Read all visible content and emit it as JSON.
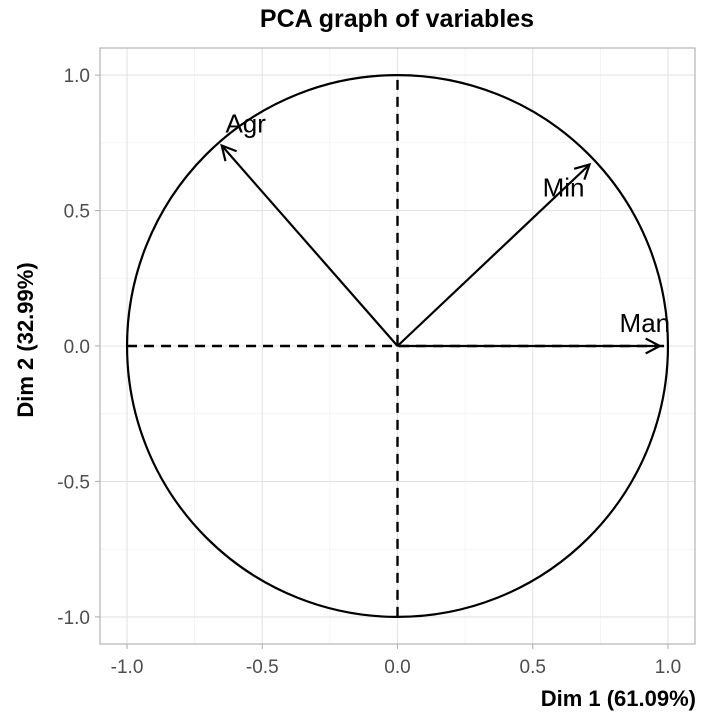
{
  "chart_data": {
    "type": "scatter",
    "title": "PCA graph of variables",
    "xlabel": "Dim 1 (61.09%)",
    "ylabel": "Dim 2 (32.99%)",
    "xlim": [
      -1.1,
      1.1
    ],
    "ylim": [
      -1.1,
      1.1
    ],
    "xticks": [
      -1.0,
      -0.5,
      0.0,
      0.5,
      1.0
    ],
    "yticks": [
      -1.0,
      -0.5,
      0.0,
      0.5,
      1.0
    ],
    "xtick_labels": [
      "-1.0",
      "-0.5",
      "0.0",
      "0.5",
      "1.0"
    ],
    "ytick_labels": [
      "-1.0",
      "-0.5",
      "0.0",
      "0.5",
      "1.0"
    ],
    "grid": true,
    "correlation_circle_radius": 1.0,
    "variables": [
      {
        "name": "Agr",
        "x": -0.65,
        "y": 0.74
      },
      {
        "name": "Min",
        "x": 0.71,
        "y": 0.67
      },
      {
        "name": "Man",
        "x": 0.97,
        "y": 0.0
      }
    ]
  }
}
